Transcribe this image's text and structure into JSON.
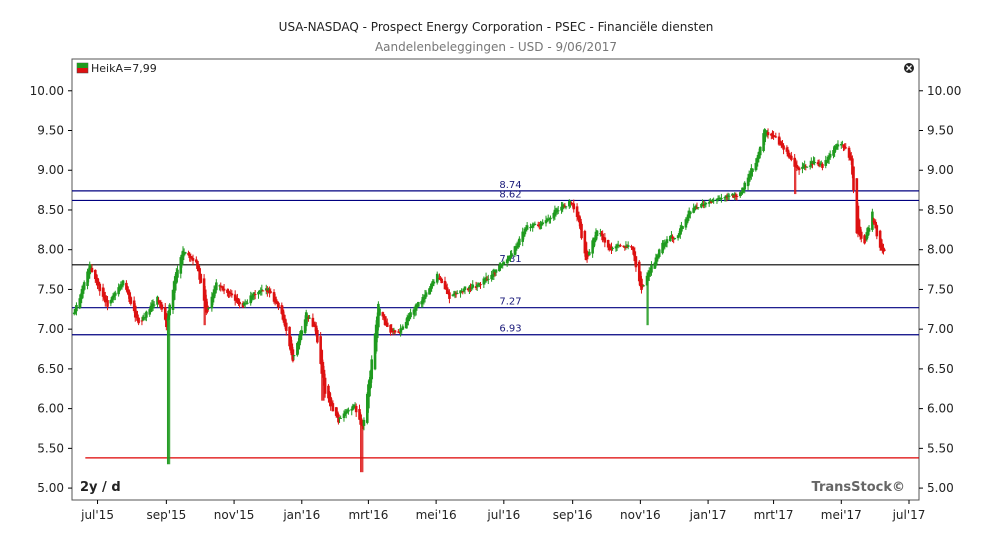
{
  "chart_data": {
    "type": "candlestick",
    "title": "USA-NASDAQ - Prospect Energy Corporation - PSEC - Financiële diensten",
    "subtitle": "Aandelenbeleggingen - USD - 9/06/2017",
    "legend": "HeikA=7,99",
    "period": "2y / d",
    "brand": "TransStock©",
    "ylim": [
      4.85,
      10.4
    ],
    "y_ticks": [
      "10.00",
      "9.50",
      "9.00",
      "8.50",
      "8.00",
      "7.50",
      "7.00",
      "6.50",
      "6.00",
      "5.50",
      "5.00"
    ],
    "x_labels": [
      "jul'15",
      "sep'15",
      "nov'15",
      "jan'16",
      "mrt'16",
      "mei'16",
      "jul'16",
      "sep'16",
      "nov'16",
      "jan'17",
      "mrt'17",
      "mei'17",
      "jul'17"
    ],
    "x_dates": [
      "2015-07-01",
      "2015-09-01",
      "2015-11-01",
      "2016-01-01",
      "2016-03-01",
      "2016-05-01",
      "2016-07-01",
      "2016-09-01",
      "2016-11-01",
      "2017-01-01",
      "2017-03-01",
      "2017-05-01",
      "2017-07-01"
    ],
    "xlim": [
      "2015-06-08",
      "2017-07-10"
    ],
    "levels": [
      {
        "value": 8.74,
        "label": "8.74",
        "color": "#000080"
      },
      {
        "value": 8.62,
        "label": "8.62",
        "color": "#000080"
      },
      {
        "value": 7.81,
        "label": "7.81",
        "color": "#000000"
      },
      {
        "value": 7.27,
        "label": "7.27",
        "color": "#000080"
      },
      {
        "value": 6.93,
        "label": "6.93",
        "color": "#000080"
      },
      {
        "value": 5.38,
        "label": "",
        "color": "#dd0000"
      }
    ],
    "level_label_date": "2016-06-27",
    "support_line_start": "2015-06-20",
    "path": [
      [
        "2015-06-10",
        7.2
      ],
      [
        "2015-06-24",
        7.8
      ],
      [
        "2015-07-03",
        7.5
      ],
      [
        "2015-07-10",
        7.3
      ],
      [
        "2015-07-24",
        7.6
      ],
      [
        "2015-08-07",
        7.05
      ],
      [
        "2015-08-24",
        7.4
      ],
      [
        "2015-09-01",
        7.05
      ],
      [
        "2015-09-08",
        7.6
      ],
      [
        "2015-09-16",
        8.0
      ],
      [
        "2015-09-28",
        7.85
      ],
      [
        "2015-10-07",
        7.2
      ],
      [
        "2015-10-16",
        7.6
      ],
      [
        "2015-10-30",
        7.4
      ],
      [
        "2015-11-09",
        7.3
      ],
      [
        "2015-11-20",
        7.45
      ],
      [
        "2015-12-02",
        7.5
      ],
      [
        "2015-12-14",
        7.2
      ],
      [
        "2015-12-24",
        6.6
      ],
      [
        "2016-01-05",
        7.2
      ],
      [
        "2016-01-13",
        7.0
      ],
      [
        "2016-01-22",
        6.2
      ],
      [
        "2016-02-03",
        5.85
      ],
      [
        "2016-02-17",
        6.05
      ],
      [
        "2016-02-25",
        5.75
      ],
      [
        "2016-03-03",
        6.5
      ],
      [
        "2016-03-10",
        7.3
      ],
      [
        "2016-03-18",
        7.0
      ],
      [
        "2016-03-28",
        6.95
      ],
      [
        "2016-04-08",
        7.2
      ],
      [
        "2016-04-20",
        7.4
      ],
      [
        "2016-05-02",
        7.7
      ],
      [
        "2016-05-13",
        7.4
      ],
      [
        "2016-05-25",
        7.5
      ],
      [
        "2016-06-08",
        7.55
      ],
      [
        "2016-06-24",
        7.75
      ],
      [
        "2016-07-08",
        7.95
      ],
      [
        "2016-07-22",
        8.3
      ],
      [
        "2016-08-03",
        8.3
      ],
      [
        "2016-08-17",
        8.5
      ],
      [
        "2016-08-31",
        8.6
      ],
      [
        "2016-09-06",
        8.4
      ],
      [
        "2016-09-13",
        7.85
      ],
      [
        "2016-09-23",
        8.25
      ],
      [
        "2016-10-05",
        8.0
      ],
      [
        "2016-10-14",
        8.05
      ],
      [
        "2016-10-24",
        8.05
      ],
      [
        "2016-11-02",
        7.5
      ],
      [
        "2016-11-10",
        7.75
      ],
      [
        "2016-11-22",
        8.1
      ],
      [
        "2016-12-05",
        8.2
      ],
      [
        "2016-12-16",
        8.5
      ],
      [
        "2017-01-02",
        8.6
      ],
      [
        "2017-01-16",
        8.65
      ],
      [
        "2017-01-30",
        8.7
      ],
      [
        "2017-02-14",
        9.15
      ],
      [
        "2017-02-21",
        9.5
      ],
      [
        "2017-03-03",
        9.4
      ],
      [
        "2017-03-14",
        9.2
      ],
      [
        "2017-03-22",
        9.0
      ],
      [
        "2017-04-05",
        9.1
      ],
      [
        "2017-04-14",
        9.05
      ],
      [
        "2017-04-26",
        9.3
      ],
      [
        "2017-05-05",
        9.3
      ],
      [
        "2017-05-10",
        9.1
      ],
      [
        "2017-05-15",
        8.2
      ],
      [
        "2017-05-22",
        8.1
      ],
      [
        "2017-05-29",
        8.45
      ],
      [
        "2017-06-05",
        8.0
      ],
      [
        "2017-06-09",
        7.99
      ]
    ],
    "spikes": [
      {
        "date": "2015-09-03",
        "low": 5.3
      },
      {
        "date": "2016-02-24",
        "low": 5.2
      },
      {
        "date": "2016-11-07",
        "low": 7.05
      },
      {
        "date": "2017-03-20",
        "low": 8.7
      },
      {
        "date": "2015-10-05",
        "low": 7.05
      },
      {
        "date": "2016-01-20",
        "low": 6.1
      }
    ],
    "colors": {
      "up": "#1f9a1f",
      "down": "#dd1111",
      "axis": "#000000"
    }
  }
}
